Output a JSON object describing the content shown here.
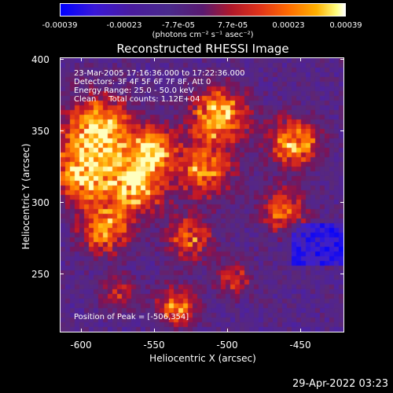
{
  "colorbar": {
    "ticks": [
      "-0.00039",
      "-0.00023",
      "-7.7e-05",
      "7.7e-05",
      "0.00023",
      "0.00039"
    ],
    "unit_label": "(photons cm⁻² s⁻¹ asec⁻²)"
  },
  "title": "Reconstructed RHESSI Image",
  "info": {
    "time_range": "23-Mar-2005 17:16:36.000 to 17:22:36.000",
    "detectors": "Detectors: 3F 4F 5F 6F 7F 8F, Att 0",
    "energy_range": "Energy Range: 25.0 - 50.0 keV",
    "algorithm": "Clean     Total counts: 1.12E+04",
    "peak": "Position of Peak = [-506,354]"
  },
  "axes": {
    "x_label": "Heliocentric X (arcsec)",
    "y_label": "Heliocentric Y (arcsec)",
    "x_ticks": [
      "-600",
      "-550",
      "-500",
      "-450"
    ],
    "y_ticks": [
      "400",
      "350",
      "300",
      "250"
    ],
    "xlim": [
      -615,
      -422
    ],
    "ylim": [
      205,
      400
    ]
  },
  "timestamp": "29-Apr-2022 03:23"
}
